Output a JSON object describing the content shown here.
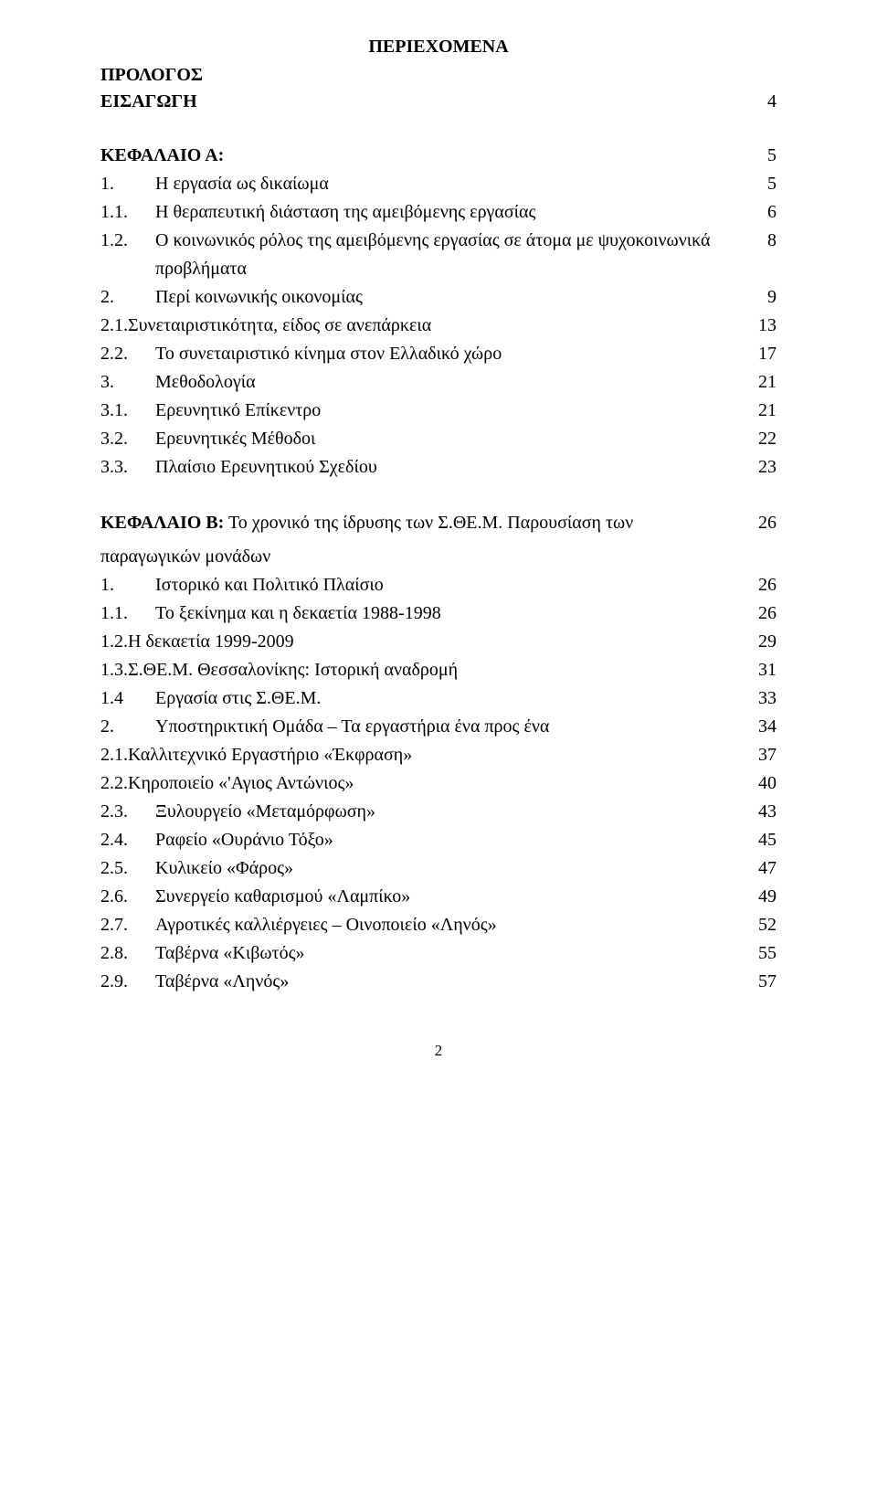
{
  "heading_center": "ΠΕΡΙΕΧΟΜΕΝΑ",
  "heading_prologue": "ΠΡΟΛΟΓΟΣ",
  "heading_intro": "ΕΙΣΑΓΩΓΗ",
  "intro_page": "4",
  "chapter_a": {
    "label": "ΚΕΦΑΛΑΙΟ Α:",
    "page": "5"
  },
  "toc_a": [
    {
      "num": "1.",
      "title": "Η εργασία ως δικαίωμα",
      "page": "5"
    },
    {
      "num": "1.1.",
      "title": "Η θεραπευτική διάσταση της αμειβόμενης εργασίας",
      "page": "6"
    },
    {
      "num": "1.2.",
      "title": "Ο κοινωνικός ρόλος της αμειβόμενης εργασίας σε άτομα με ψυχοκοινωνικά προβλήματα",
      "page": "8"
    },
    {
      "num": "2.",
      "title": "Περί κοινωνικής οικονομίας",
      "page": "9"
    },
    {
      "num": "2.1.",
      "title": "Συνεταιριστικότητα, είδος σε ανεπάρκεια",
      "page": "13",
      "merge_num": true
    },
    {
      "num": "2.2.",
      "title": "Το συνεταιριστικό κίνημα στον Ελλαδικό χώρο",
      "page": "17"
    },
    {
      "num": "3.",
      "title": "Μεθοδολογία",
      "page": "21"
    },
    {
      "num": "3.1.",
      "title": "Ερευνητικό Επίκεντρο",
      "page": "21"
    },
    {
      "num": "3.2.",
      "title": "Ερευνητικές Μέθοδοι",
      "page": "22"
    },
    {
      "num": "3.3.",
      "title": "Πλαίσιο Ερευνητικού Σχεδίου",
      "page": "23"
    }
  ],
  "chapter_b": {
    "line1": "ΚΕΦΑΛΑΙΟ Β:",
    "line1_cont": " Το χρονικό της ίδρυσης των Σ.ΘΕ.Μ. Παρουσίαση των",
    "line2": "παραγωγικών μονάδων",
    "page": "26"
  },
  "toc_b": [
    {
      "num": "1.",
      "title": "Ιστορικό και Πολιτικό Πλαίσιο",
      "page": "26"
    },
    {
      "num": "1.1.",
      "title": "Το ξεκίνημα και η δεκαετία 1988-1998",
      "page": "26"
    },
    {
      "num": "1.2.",
      "title": "Η δεκαετία 1999-2009",
      "page": "29",
      "merge_num": true
    },
    {
      "num": "1.3.",
      "title": "Σ.ΘΕ.Μ. Θεσσαλονίκης: Ιστορική αναδρομή",
      "page": "31",
      "merge_num": true
    },
    {
      "num": "1.4",
      "title": "Εργασία στις Σ.ΘΕ.Μ.",
      "page": "33"
    },
    {
      "num": "2.",
      "title": "Υποστηρικτική Ομάδα – Τα εργαστήρια ένα προς ένα",
      "page": "34"
    },
    {
      "num": "2.1.",
      "title": "Καλλιτεχνικό Εργαστήριο «Έκφραση»",
      "page": "37",
      "merge_num": true
    },
    {
      "num": "2.2.",
      "title": "Κηροποιείο «'Αγιος Αντώνιος»",
      "page": "40",
      "merge_num": true
    },
    {
      "num": "2.3.",
      "title": "Ξυλουργείο «Μεταμόρφωση»",
      "page": "43"
    },
    {
      "num": "2.4.",
      "title": "Ραφείο «Ουράνιο Τόξο»",
      "page": "45"
    },
    {
      "num": "2.5.",
      "title": "Κυλικείο «Φάρος»",
      "page": "47"
    },
    {
      "num": "2.6.",
      "title": "Συνεργείο καθαρισμού «Λαμπίκο»",
      "page": "49"
    },
    {
      "num": "2.7.",
      "title": "Αγροτικές καλλιέργειες – Οινοποιείο «Ληνός»",
      "page": "52"
    },
    {
      "num": "2.8.",
      "title": "Ταβέρνα «Κιβωτός»",
      "page": "55"
    },
    {
      "num": "2.9.",
      "title": "Ταβέρνα «Ληνός»",
      "page": "57"
    }
  ],
  "footer_page_number": "2"
}
